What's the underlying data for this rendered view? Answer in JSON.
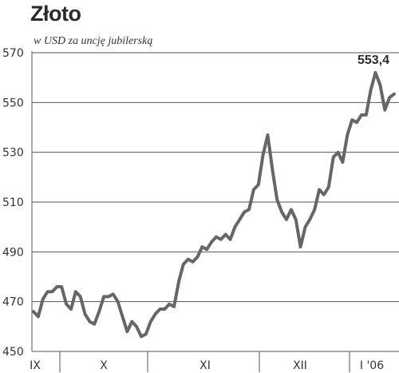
{
  "chart_data": {
    "type": "line",
    "title": "Złoto",
    "subtitle": "w USD za uncję jubilerską",
    "ylim": [
      450,
      570
    ],
    "yticks": [
      "570",
      "550",
      "530",
      "510",
      "490",
      "470",
      "450"
    ],
    "ytick_values": [
      570,
      550,
      530,
      510,
      490,
      470,
      450
    ],
    "month_labels": [
      "IX",
      "X",
      "XI",
      "XII",
      "I '06"
    ],
    "grid": true,
    "annotation": "553,4",
    "line_color": "#666666",
    "series": [
      {
        "values": [
          466,
          464,
          471,
          474,
          474,
          476,
          476,
          469,
          467,
          474,
          472,
          465,
          462,
          461,
          466,
          472,
          472,
          473,
          470,
          464,
          458,
          462,
          460,
          456,
          457,
          462,
          465,
          467,
          467,
          469,
          468,
          478,
          485,
          487,
          486,
          488,
          492,
          491,
          494,
          496,
          495,
          497,
          495,
          500,
          503,
          506,
          507,
          515,
          517,
          529,
          537,
          523,
          511,
          506,
          503,
          507,
          503,
          492,
          500,
          503,
          507,
          515,
          513,
          516,
          528,
          530,
          526,
          537,
          543,
          542,
          545,
          545,
          555,
          562,
          557,
          547,
          552,
          553.4
        ]
      }
    ]
  }
}
